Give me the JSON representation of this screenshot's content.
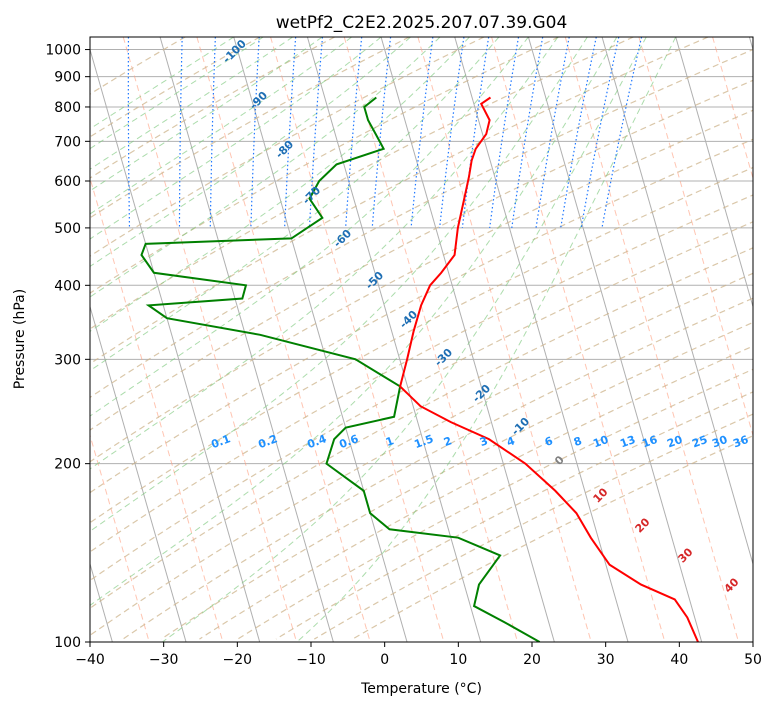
{
  "chart_data": {
    "type": "line",
    "title": "wetPf2_C2E2.2025.207.07.39.G04",
    "xlabel": "Temperature (°C)",
    "ylabel": "Pressure (hPa)",
    "xlim": [
      -40,
      50
    ],
    "ylim": [
      1050,
      100
    ],
    "yscale": "log",
    "grid": true,
    "x_ticks": [
      -40,
      -30,
      -20,
      -10,
      0,
      10,
      20,
      30,
      40,
      50
    ],
    "x_tick_labels": [
      "−40",
      "−30",
      "−20",
      "−10",
      "0",
      "10",
      "20",
      "30",
      "40",
      "50"
    ],
    "y_ticks": [
      100,
      200,
      300,
      400,
      500,
      600,
      700,
      800,
      900,
      1000
    ],
    "y_tick_labels": [
      "100",
      "200",
      "300",
      "400",
      "500",
      "600",
      "700",
      "800",
      "900",
      "1000"
    ],
    "colors": {
      "temperature": "#ff0000",
      "dewpoint": "#008000",
      "isotherm": "#ff9f80",
      "dry_adiabat": "#cdb48c",
      "moist_adiabat": "#7fc97f",
      "mixing_ratio": "#1f77ff",
      "mixing_ratio_label": "#1e90ff",
      "isotherm_label_cold": "#1f6fb4",
      "isotherm_label_warm": "#d62728",
      "zero_label": "#808080"
    },
    "series": [
      {
        "name": "Temperature",
        "points": [
          [
            12.5,
            830
          ],
          [
            11.0,
            810
          ],
          [
            11.5,
            760
          ],
          [
            10.5,
            720
          ],
          [
            8.5,
            680
          ],
          [
            7.5,
            650
          ],
          [
            6.5,
            610
          ],
          [
            5.0,
            560
          ],
          [
            3.0,
            500
          ],
          [
            1.5,
            450
          ],
          [
            -1.0,
            420
          ],
          [
            -3.0,
            400
          ],
          [
            -5.0,
            370
          ],
          [
            -7.0,
            335
          ],
          [
            -9.0,
            300
          ],
          [
            -11.0,
            270
          ],
          [
            -9.0,
            250
          ],
          [
            -5.5,
            235
          ],
          [
            -1.0,
            220
          ],
          [
            3.0,
            200
          ],
          [
            6.0,
            180
          ],
          [
            8.0,
            165
          ],
          [
            9.0,
            150
          ],
          [
            10.5,
            135
          ],
          [
            14.0,
            125
          ],
          [
            18.0,
            118
          ],
          [
            19.0,
            110
          ],
          [
            19.5,
            100
          ]
        ]
      },
      {
        "name": "Dewpoint",
        "points": [
          [
            -3.0,
            830
          ],
          [
            -5.0,
            800
          ],
          [
            -5.0,
            760
          ],
          [
            -4.5,
            720
          ],
          [
            -4.0,
            680
          ],
          [
            -11.0,
            640
          ],
          [
            -14.0,
            600
          ],
          [
            -16.0,
            560
          ],
          [
            -15.0,
            520
          ],
          [
            -20.0,
            480
          ],
          [
            -40.0,
            470
          ],
          [
            -41.0,
            450
          ],
          [
            -40.0,
            420
          ],
          [
            -28.0,
            400
          ],
          [
            -29.0,
            380
          ],
          [
            -42.0,
            370
          ],
          [
            -40.0,
            352
          ],
          [
            -28.0,
            330
          ],
          [
            -16.0,
            300
          ],
          [
            -11.0,
            270
          ],
          [
            -13.0,
            240
          ],
          [
            -20.0,
            230
          ],
          [
            -22.0,
            220
          ],
          [
            -24.0,
            200
          ],
          [
            -20.0,
            180
          ],
          [
            -20.0,
            165
          ],
          [
            -18.0,
            155
          ],
          [
            -9.0,
            150
          ],
          [
            -4.0,
            140
          ],
          [
            -8.0,
            125
          ],
          [
            -9.5,
            115
          ],
          [
            -6.0,
            108
          ],
          [
            -2.0,
            100
          ]
        ]
      }
    ],
    "isotherm_labels": [
      "-100",
      "-90",
      "-80",
      "-70",
      "-60",
      "-50",
      "-40",
      "-30",
      "-20",
      "-10",
      "0",
      "10",
      "20",
      "30",
      "40"
    ],
    "mixing_ratio_labels": [
      "0.1",
      "0.2",
      "0.4",
      "0.6",
      "1",
      "1.5",
      "2",
      "3",
      "4",
      "6",
      "8",
      "10",
      "13",
      "16",
      "20",
      "25",
      "30",
      "36"
    ]
  }
}
